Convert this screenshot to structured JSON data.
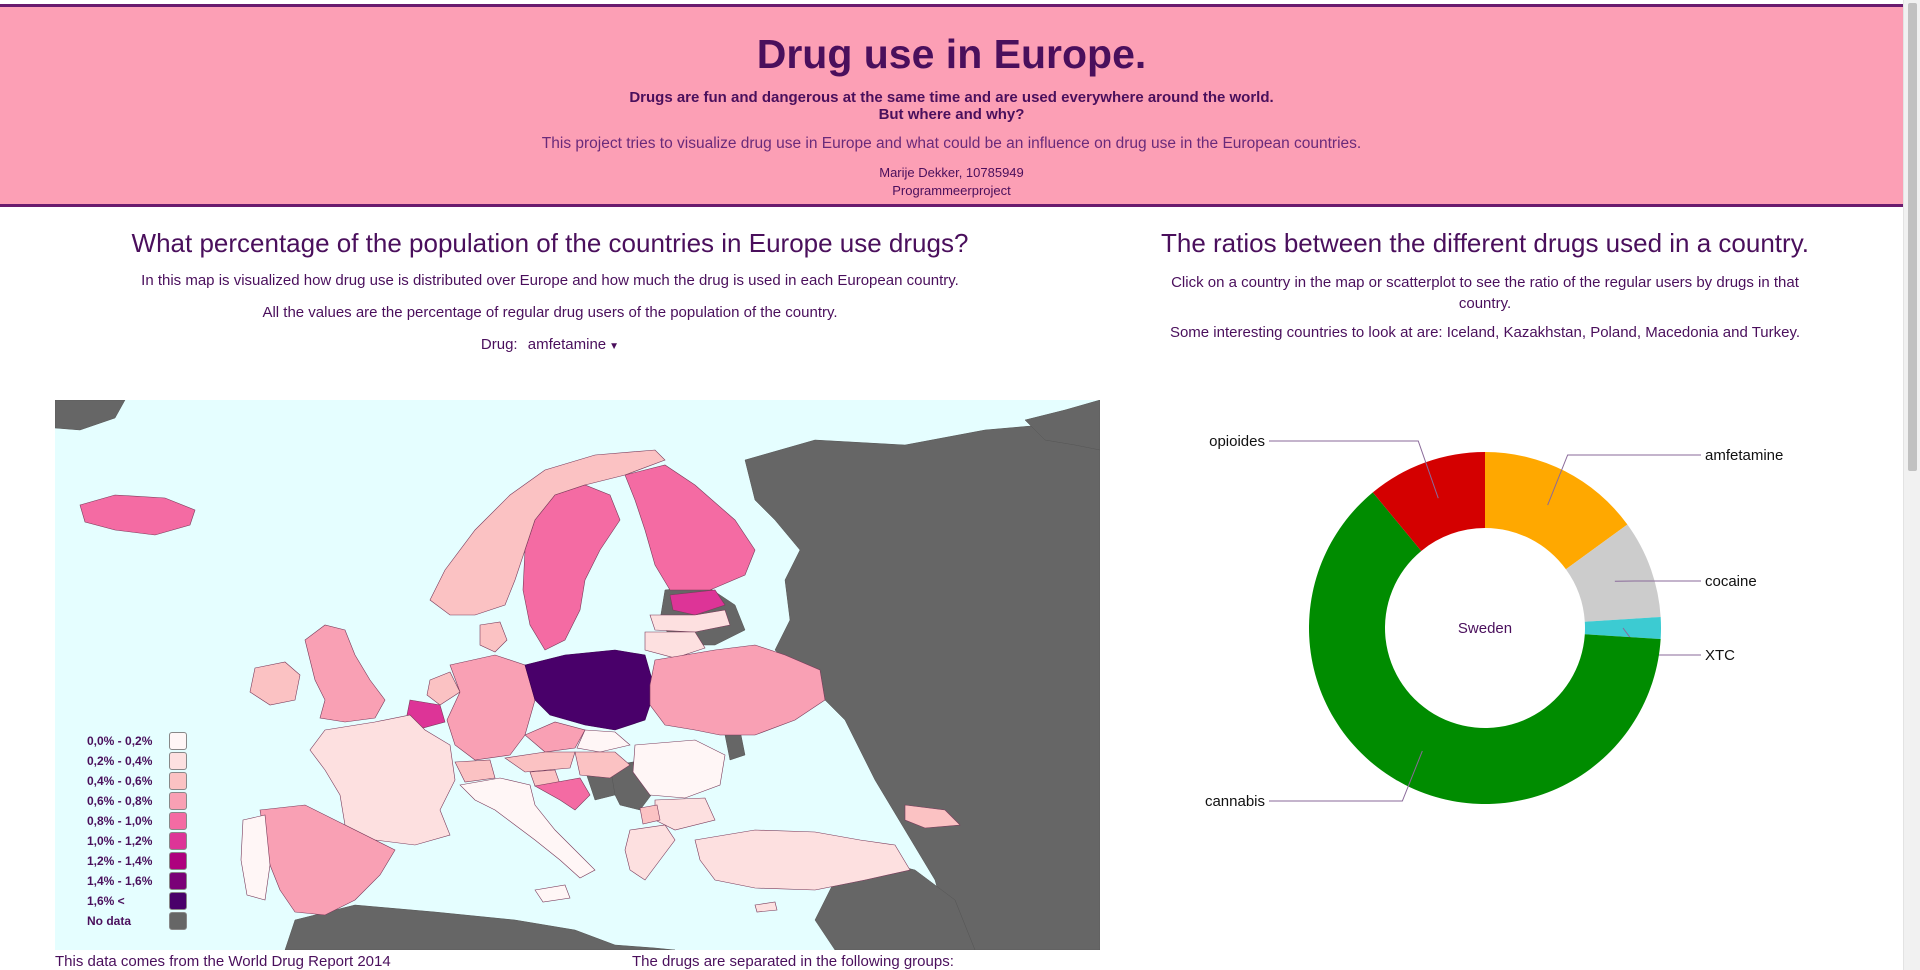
{
  "header": {
    "title": "Drug use in Europe.",
    "tagline_1": "Drugs are fun and dangerous at the same time and are used everywhere around the world.",
    "tagline_2": "But where and why?",
    "intro": "This project tries to visualize drug use in Europe and what could be an influence on drug use in the European countries.",
    "author": "Marije Dekker, 10785949",
    "course": "Programmeerproject"
  },
  "map_section": {
    "heading": "What percentage of the population of the countries in Europe use drugs?",
    "desc_1": "In this map is visualized how drug use is distributed over Europe and how much the drug is used in each European country.",
    "desc_2": "All the values are the percentage of regular drug users of the population of the country.",
    "drug_label": "Drug:",
    "drug_selected": "amfetamine",
    "ocean_color": "#e5feff",
    "no_data_color": "#666666",
    "legend": [
      {
        "label": "0,0% - 0,2%",
        "color": "#fff6f6"
      },
      {
        "label": "0,2% - 0,4%",
        "color": "#fde0e0"
      },
      {
        "label": "0,4% - 0,6%",
        "color": "#fbc2c3"
      },
      {
        "label": "0,6% - 0,8%",
        "color": "#f9a0b4"
      },
      {
        "label": "0,8% - 1,0%",
        "color": "#f46ba3"
      },
      {
        "label": "1,0% - 1,2%",
        "color": "#dd3497"
      },
      {
        "label": "1,2% - 1,4%",
        "color": "#ae017e"
      },
      {
        "label": "1,4% - 1,6%",
        "color": "#7a0177"
      },
      {
        "label": "1,6% <",
        "color": "#49006a"
      },
      {
        "label": "No data",
        "color": "#666666"
      }
    ],
    "footer_source": "This data comes from the World Drug Report 2014",
    "footer_groups": "The drugs are separated in the following groups:"
  },
  "pie_section": {
    "heading": "The ratios between the different drugs used in a country.",
    "desc_1": "Click on a country in the map or scatterplot to see the ratio of the regular users by drugs in that country.",
    "desc_2": "Some interesting countries to look at are: Iceland, Kazakhstan, Poland, Macedonia and Turkey."
  },
  "chart_data": {
    "type": "pie",
    "center_label": "Sweden",
    "slices": [
      {
        "name": "amfetamine",
        "value": 15,
        "color": "#ffa800"
      },
      {
        "name": "cocaine",
        "value": 9,
        "color": "#cccccc"
      },
      {
        "name": "XTC",
        "value": 2,
        "color": "#3ccbd2"
      },
      {
        "name": "cannabis",
        "value": 63,
        "color": "#008c00"
      },
      {
        "name": "opioides",
        "value": 11,
        "color": "#d40000"
      }
    ]
  }
}
